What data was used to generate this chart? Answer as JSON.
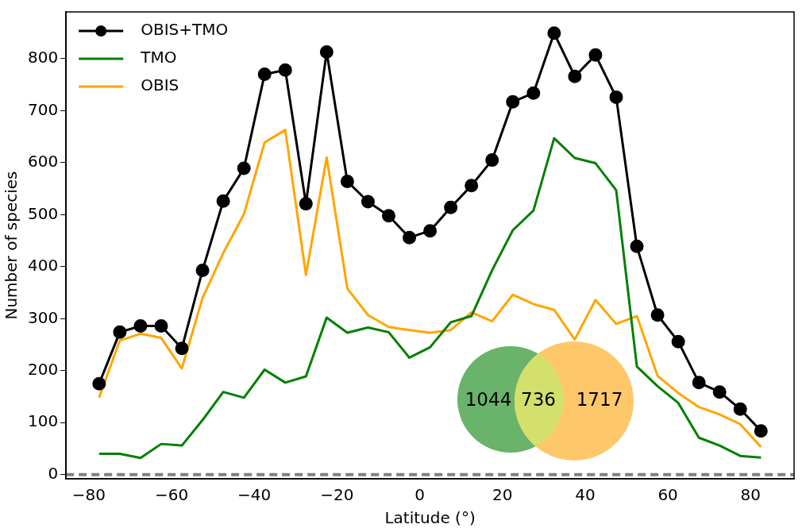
{
  "chart_data": {
    "type": "line",
    "xlabel": "Latitude (°)",
    "ylabel": "Number of species",
    "x": [
      -77.5,
      -72.5,
      -67.5,
      -62.5,
      -57.5,
      -52.5,
      -47.5,
      -42.5,
      -37.5,
      -32.5,
      -27.5,
      -22.5,
      -17.5,
      -12.5,
      -7.5,
      -2.5,
      2.5,
      7.5,
      12.5,
      17.5,
      22.5,
      27.5,
      32.5,
      37.5,
      42.5,
      47.5,
      52.5,
      57.5,
      62.5,
      67.5,
      72.5,
      77.5,
      82.5
    ],
    "series": [
      {
        "name": "OBIS+TMO",
        "color": "#000000",
        "marker": "circle",
        "values": [
          175,
          274,
          286,
          286,
          243,
          393,
          526,
          589,
          770,
          778,
          521,
          813,
          564,
          525,
          498,
          456,
          469,
          514,
          556,
          605,
          717,
          734,
          849,
          766,
          807,
          726,
          439,
          307,
          256,
          177,
          159,
          126,
          84
        ]
      },
      {
        "name": "TMO",
        "color": "#008000",
        "marker": "none",
        "values": [
          40,
          40,
          32,
          59,
          56,
          105,
          159,
          148,
          202,
          177,
          189,
          302,
          273,
          283,
          274,
          225,
          245,
          293,
          305,
          393,
          470,
          508,
          647,
          609,
          599,
          547,
          208,
          170,
          138,
          71,
          56,
          36,
          33
        ]
      },
      {
        "name": "OBIS",
        "color": "#ffa500",
        "marker": "none",
        "values": [
          148,
          258,
          271,
          263,
          204,
          340,
          426,
          501,
          639,
          663,
          384,
          610,
          358,
          307,
          284,
          278,
          273,
          278,
          312,
          295,
          346,
          328,
          317,
          260,
          336,
          290,
          305,
          190,
          157,
          130,
          116,
          97,
          53
        ]
      }
    ],
    "xlim": [
      -85.5,
      90.5
    ],
    "xticks": [
      {
        "value": -80,
        "label": "−80"
      },
      {
        "value": -60,
        "label": "−60"
      },
      {
        "value": -40,
        "label": "−40"
      },
      {
        "value": -20,
        "label": "−20"
      },
      0,
      20,
      40,
      60,
      80
    ],
    "ylim": [
      -8,
      890
    ],
    "yticks": [
      0,
      100,
      200,
      300,
      400,
      500,
      600,
      700,
      800
    ],
    "ref_lines": [
      {
        "axis": "y",
        "value": 0,
        "color": "#808080",
        "line_style": "dashed"
      }
    ],
    "annotations": [
      "1044",
      "736",
      "1717"
    ],
    "legend": "top left",
    "grid": false,
    "line_style": "solid"
  }
}
